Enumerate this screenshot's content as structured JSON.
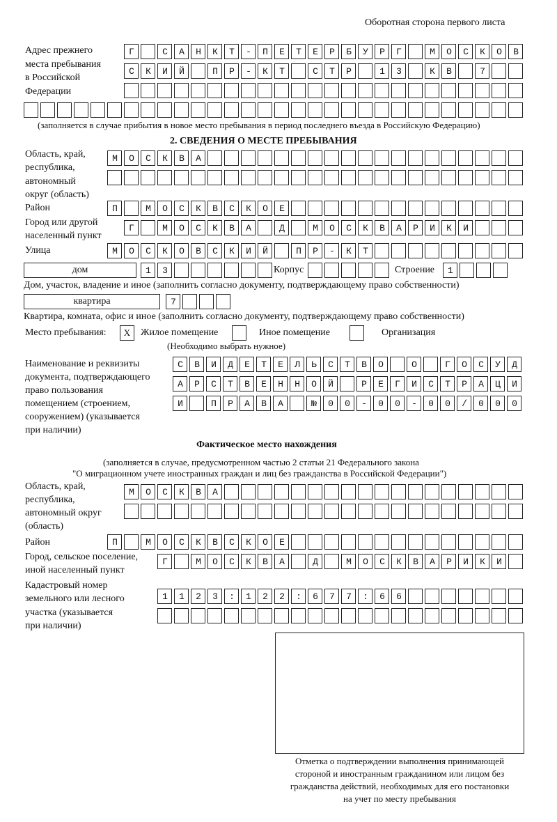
{
  "header": "Оборотная сторона первого листа",
  "prev_address": {
    "label": [
      "Адрес прежнего",
      "места пребывания",
      "в Российской",
      "Федерации"
    ],
    "rows": [
      "Г САНКТ-ПЕТЕРБУРГ МОСКОВ",
      "СКИЙ ПР-КТ СТР 13 КВ 7  ",
      "                        ",
      "                              "
    ],
    "note": "(заполняется в случае прибытия в новое место пребывания в период последнего въезда в Российскую Федерацию)"
  },
  "section2": {
    "title": "2. СВЕДЕНИЯ О МЕСТЕ ПРЕБЫВАНИЯ",
    "region_label": [
      "Область, край,",
      "республика,",
      "автономный",
      "округ (область)"
    ],
    "region_rows": [
      "МОСКВА                   ",
      "                         "
    ],
    "district_label": "Район",
    "district": "П МОСКВСКОЕ              ",
    "city_label": [
      "Город или другой",
      "населенный пункт"
    ],
    "city": "Г МОСКВА Д МОСКВАРИКИ   ",
    "street_label": "Улица",
    "street": "МОСКОВСКИЙ ПР-КТ         ",
    "house_type": "дом",
    "house": "13      ",
    "korpus_label": "Корпус",
    "korpus": "     ",
    "stroenie_label": "Строение",
    "stroenie": "1   ",
    "house_note": "Дом, участок, владение и иное (заполнить согласно документу, подтверждающему право собственности)",
    "flat_type": "квартира",
    "flat": "7   ",
    "flat_note": "Квартира, комната, офис и иное (заполнить согласно документу, подтверждающему право собственности)",
    "place_label": "Место пребывания:",
    "options": [
      {
        "label": "Жилое помещение",
        "mark": "X"
      },
      {
        "label": "Иное помещение",
        "mark": ""
      },
      {
        "label": "Организация",
        "mark": ""
      }
    ],
    "choose_note": "(Необходимо выбрать нужное)",
    "doc_label": [
      "Наименование и реквизиты",
      "документа, подтверждающего",
      "право пользования",
      "помещением (строением,",
      "сооружением) (указывается",
      "при наличии)"
    ],
    "doc_rows": [
      "СВИДЕТЕЛЬСТВО О ГОСУД",
      "АРСТВЕННОЙ РЕГИСТРАЦИ",
      "И ПРАВА №00-00-00/000"
    ]
  },
  "actual": {
    "title": "Фактическое место нахождения",
    "note": [
      "(заполняется в случае, предусмотренном частью 2 статьи 21 Федерального закона",
      "\"О миграционном учете иностранных граждан и лиц без гражданства в Российской Федерации\")"
    ],
    "region_label": [
      "Область, край,",
      "республика,",
      "автономный округ",
      "(область)"
    ],
    "region_rows": [
      "МОСКВА                  ",
      "                        "
    ],
    "district_label": "Район",
    "district": "П МОСКВСКОЕ              ",
    "city_label": [
      "Город, сельское поселение,",
      "иной населенный пункт"
    ],
    "city": "Г МОСКВА Д МОСКВАРИКИ ",
    "cadastral_label": [
      "Кадастровый номер",
      "земельного или лесного",
      "участка (указывается",
      "при наличии)"
    ],
    "cadastral_rows": [
      "1123:122:677:66       ",
      "                      "
    ]
  },
  "stamp_caption": [
    "Отметка о подтверждении выполнения принимающей",
    "стороной и иностранным гражданином или лицом без",
    "гражданства действий, необходимых для его постановки",
    "на учет по месту пребывания"
  ]
}
